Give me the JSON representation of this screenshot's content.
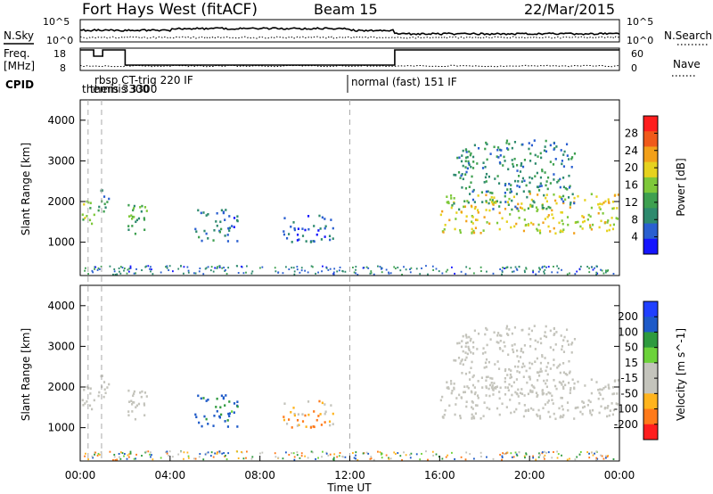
{
  "header": {
    "site": "Fort Hays West (fitACF)",
    "beam": "Beam 15",
    "date": "22/Mar/2015"
  },
  "noise_panel": {
    "left_label": "N.Sky",
    "right_label": "N.Search",
    "y_ticks": [
      "10^5",
      "10^0"
    ],
    "right_ticks": [
      "10^5",
      "10^0"
    ]
  },
  "freq_panel": {
    "left_label_1": "Freq.",
    "left_label_2": "[MHz]",
    "right_label": "Nave",
    "y_ticks": [
      "18",
      "8"
    ],
    "right_ticks": [
      "60",
      "0"
    ]
  },
  "cpid_panel": {
    "label": "CPID",
    "modes": [
      {
        "text": "rbsp CT-trig 220 IF",
        "start_hour": 0.95
      },
      {
        "text": "themis 3300",
        "start_hour": 0.35
      },
      {
        "text": "themis 3300",
        "start_hour": 0.55
      },
      {
        "text": "normal (fast) 151 IF",
        "start_hour": 12.0
      }
    ]
  },
  "time_axis": {
    "label": "Time UT",
    "ticks": [
      "00:00",
      "04:00",
      "08:00",
      "12:00",
      "16:00",
      "20:00",
      "00:00"
    ]
  },
  "colors": {
    "scale_low": "#1515ff",
    "scale_mid": "#2ea043",
    "scale_high": "#ff1e1e",
    "ground_scatter": "#c4c4bc",
    "mode_line": "#aaaaaa"
  },
  "chart_data": {
    "type": "heatmap",
    "x_range_hours": [
      0,
      24
    ],
    "y_range_km": [
      180,
      4500
    ],
    "power": {
      "ylabel": "Slant Range [km]",
      "colorbar_label": "Power [dB]",
      "colorbar_ticks": [
        "28",
        "24",
        "20",
        "16",
        "12",
        "8",
        "4"
      ],
      "colorbar_range": [
        0,
        30
      ]
    },
    "velocity": {
      "ylabel": "Slant Range [km]",
      "colorbar_label": "Velocity [m s^-1]",
      "colorbar_ticks": [
        "200",
        "100",
        "50",
        "15",
        "-15",
        "-50",
        "-100",
        "-200"
      ]
    },
    "y_ticks": [
      "4000",
      "3000",
      "2000",
      "1000"
    ],
    "y_tick_values": [
      4000,
      3000,
      2000,
      1000
    ],
    "scatter_regions": [
      {
        "t0": 0.0,
        "t1": 0.6,
        "r0": 1300,
        "r1": 2100,
        "power": 14,
        "velocity": 0,
        "gs": true
      },
      {
        "t0": 0.6,
        "t1": 1.3,
        "r0": 1700,
        "r1": 2300,
        "power": 10,
        "velocity": 0,
        "gs": true
      },
      {
        "t0": 2.0,
        "t1": 3.2,
        "r0": 1200,
        "r1": 2000,
        "power": 12,
        "velocity": -20,
        "gs": true
      },
      {
        "t0": 5.0,
        "t1": 7.0,
        "r0": 1000,
        "r1": 1800,
        "power": 7,
        "velocity": 120,
        "gs": false
      },
      {
        "t0": 9.0,
        "t1": 11.3,
        "r0": 1000,
        "r1": 1700,
        "power": 6,
        "velocity": -80,
        "gs": false
      },
      {
        "t0": 16.0,
        "t1": 24.0,
        "r0": 1200,
        "r1": 2200,
        "power": 18,
        "velocity": 0,
        "gs": true
      },
      {
        "t0": 16.5,
        "t1": 22.0,
        "r0": 1800,
        "r1": 3500,
        "power": 9,
        "velocity": 0,
        "gs": true
      }
    ]
  }
}
